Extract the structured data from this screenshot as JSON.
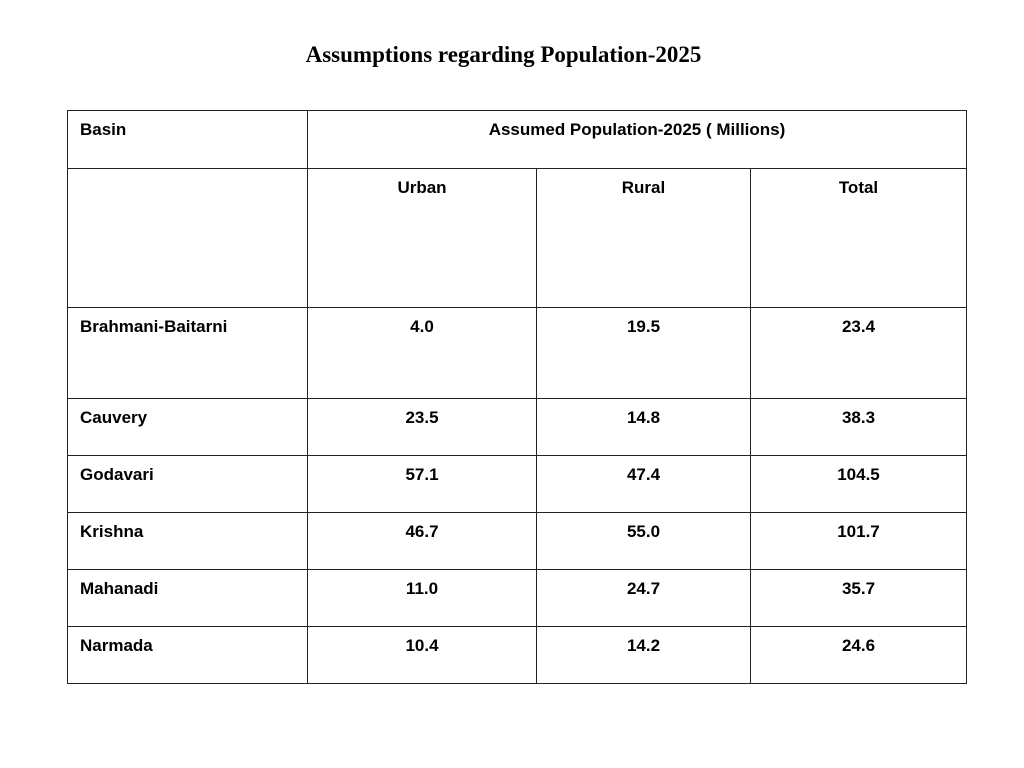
{
  "title": "Assumptions regarding Population-2025",
  "table": {
    "basin_header": "Basin",
    "group_header": "Assumed Population-2025 ( Millions)",
    "columns": [
      "Urban",
      "Rural",
      "Total"
    ],
    "rows": [
      {
        "basin": "Brahmani-Baitarni",
        "urban": "4.0",
        "rural": "19.5",
        "total": "23.4"
      },
      {
        "basin": "Cauvery",
        "urban": "23.5",
        "rural": "14.8",
        "total": "38.3"
      },
      {
        "basin": "Godavari",
        "urban": "57.1",
        "rural": "47.4",
        "total": "104.5"
      },
      {
        "basin": "Krishna",
        "urban": "46.7",
        "rural": "55.0",
        "total": "101.7"
      },
      {
        "basin": "Mahanadi",
        "urban": "11.0",
        "rural": "24.7",
        "total": "35.7"
      },
      {
        "basin": "Narmada",
        "urban": "10.4",
        "rural": "14.2",
        "total": "24.6"
      }
    ]
  }
}
